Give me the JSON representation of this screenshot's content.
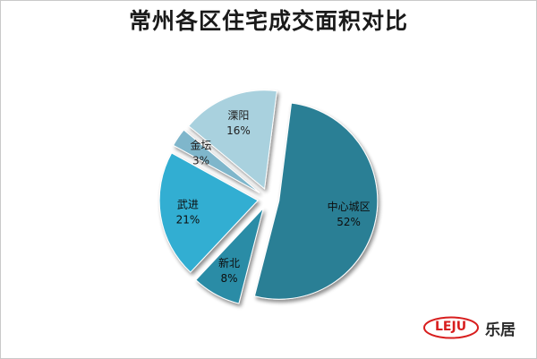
{
  "chart_data": {
    "type": "pie",
    "title": "常州各区住宅成交面积对比",
    "slices": [
      {
        "name": "中心城区",
        "value": 52,
        "label": "52%",
        "color": "#2a7f95",
        "offset": true
      },
      {
        "name": "新北",
        "value": 8,
        "label": "8%",
        "color": "#2b8ca6",
        "offset": true
      },
      {
        "name": "武进",
        "value": 21,
        "label": "21%",
        "color": "#33aed2",
        "offset": true
      },
      {
        "name": "金坛",
        "value": 3,
        "label": "3%",
        "color": "#7fb6cb",
        "offset": true
      },
      {
        "name": "溧阳",
        "value": 16,
        "label": "16%",
        "color": "#a9d1de",
        "offset": true
      }
    ],
    "legend": "none",
    "data_labels": "inside"
  },
  "logo": {
    "mark": "LEJU",
    "text": "乐居"
  }
}
